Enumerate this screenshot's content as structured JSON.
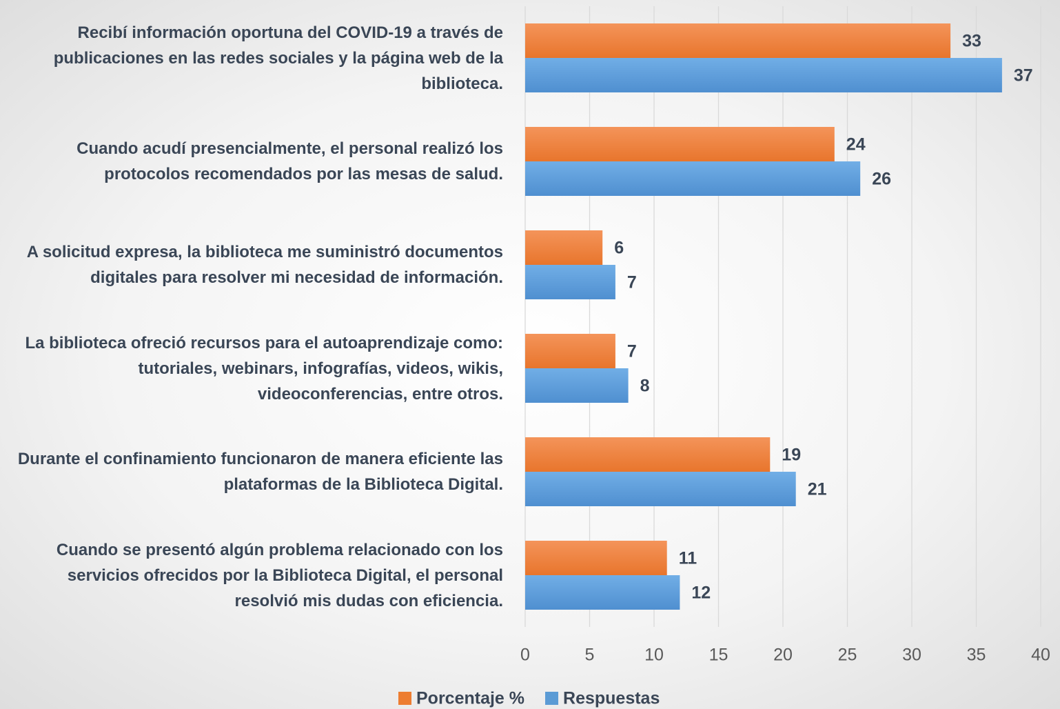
{
  "chart_data": {
    "type": "barh",
    "categories": [
      "Recibí información oportuna del COVID-19 a través de publicaciones en las redes sociales y la página web de la biblioteca.",
      "Cuando acudí presencialmente, el personal realizó los protocolos recomendados por las mesas de salud.",
      "A solicitud expresa, la biblioteca me suministró documentos digitales para resolver mi necesidad de información.",
      "La biblioteca ofreció recursos para el autoaprendizaje como: tutoriales, webinars, infografías, videos, wikis, videoconferencias, entre otros.",
      "Durante el confinamiento funcionaron de manera eficiente las plataformas de la Biblioteca Digital.",
      "Cuando se presentó algún problema relacionado con los servicios ofrecidos por la Biblioteca Digital, el personal resolvió mis dudas con eficiencia."
    ],
    "series": [
      {
        "name": "Porcentaje %",
        "color": "#ed7d31",
        "values": [
          33,
          24,
          6,
          7,
          19,
          11
        ]
      },
      {
        "name": "Respuestas",
        "color": "#5b9bd5",
        "values": [
          37,
          26,
          7,
          8,
          21,
          12
        ]
      }
    ],
    "xlim": [
      0,
      40
    ],
    "xticks": [
      0,
      5,
      10,
      15,
      20,
      25,
      30,
      35,
      40
    ],
    "grid": true,
    "legend": "bottom"
  }
}
